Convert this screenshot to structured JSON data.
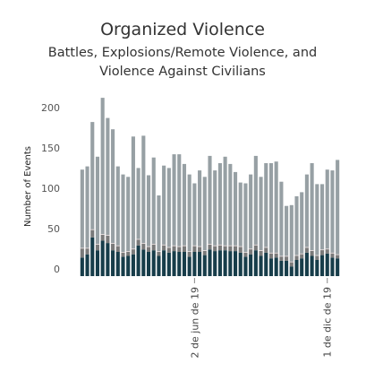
{
  "chart_data": {
    "type": "bar",
    "stacked": true,
    "title": "Organized Violence",
    "subtitle_line1": "Battles, Explosions/Remote Violence, and",
    "subtitle_line2": "Violence Against Civilians",
    "ylabel": "Number of Events",
    "ylim": [
      0,
      220
    ],
    "yticks": [
      0,
      50,
      100,
      150,
      200
    ],
    "grid": false,
    "x_tick_labels": [
      {
        "index": 22,
        "label": "2 de jun de 19"
      },
      {
        "index": 48,
        "label": "1 de dic de 19"
      }
    ],
    "colors": {
      "bottom": "#173d4a",
      "middle": "#7a7a7a",
      "top": "#97a0a4",
      "separator": "#f2e6e6"
    },
    "series": [
      {
        "values": [
          23,
          27,
          48,
          32,
          44,
          41,
          32,
          30,
          24,
          25,
          27,
          38,
          33,
          30,
          32,
          25,
          32,
          29,
          31,
          30,
          30,
          24,
          30,
          30,
          26,
          33,
          31,
          32,
          32,
          31,
          31,
          29,
          24,
          27,
          32,
          25,
          29,
          22,
          23,
          19,
          19,
          12,
          20,
          22,
          29,
          25,
          20,
          26,
          28,
          23,
          22
        ]
      },
      {
        "values": [
          12,
          8,
          10,
          8,
          8,
          10,
          9,
          8,
          6,
          6,
          7,
          8,
          8,
          7,
          8,
          6,
          7,
          7,
          7,
          7,
          8,
          7,
          8,
          7,
          6,
          7,
          7,
          7,
          6,
          7,
          7,
          8,
          6,
          7,
          7,
          7,
          7,
          7,
          6,
          6,
          6,
          6,
          6,
          6,
          7,
          7,
          6,
          7,
          6,
          6,
          5
        ]
      },
      {
        "values": [
          97,
          101,
          133,
          108,
          169,
          145,
          141,
          98,
          96,
          92,
          139,
          88,
          133,
          88,
          107,
          69,
          98,
          98,
          113,
          114,
          101,
          95,
          77,
          94,
          91,
          109,
          93,
          101,
          110,
          101,
          91,
          79,
          85,
          92,
          110,
          91,
          104,
          111,
          113,
          92,
          62,
          70,
          73,
          76,
          90,
          108,
          88,
          81,
          98,
          102,
          117
        ]
      }
    ]
  }
}
